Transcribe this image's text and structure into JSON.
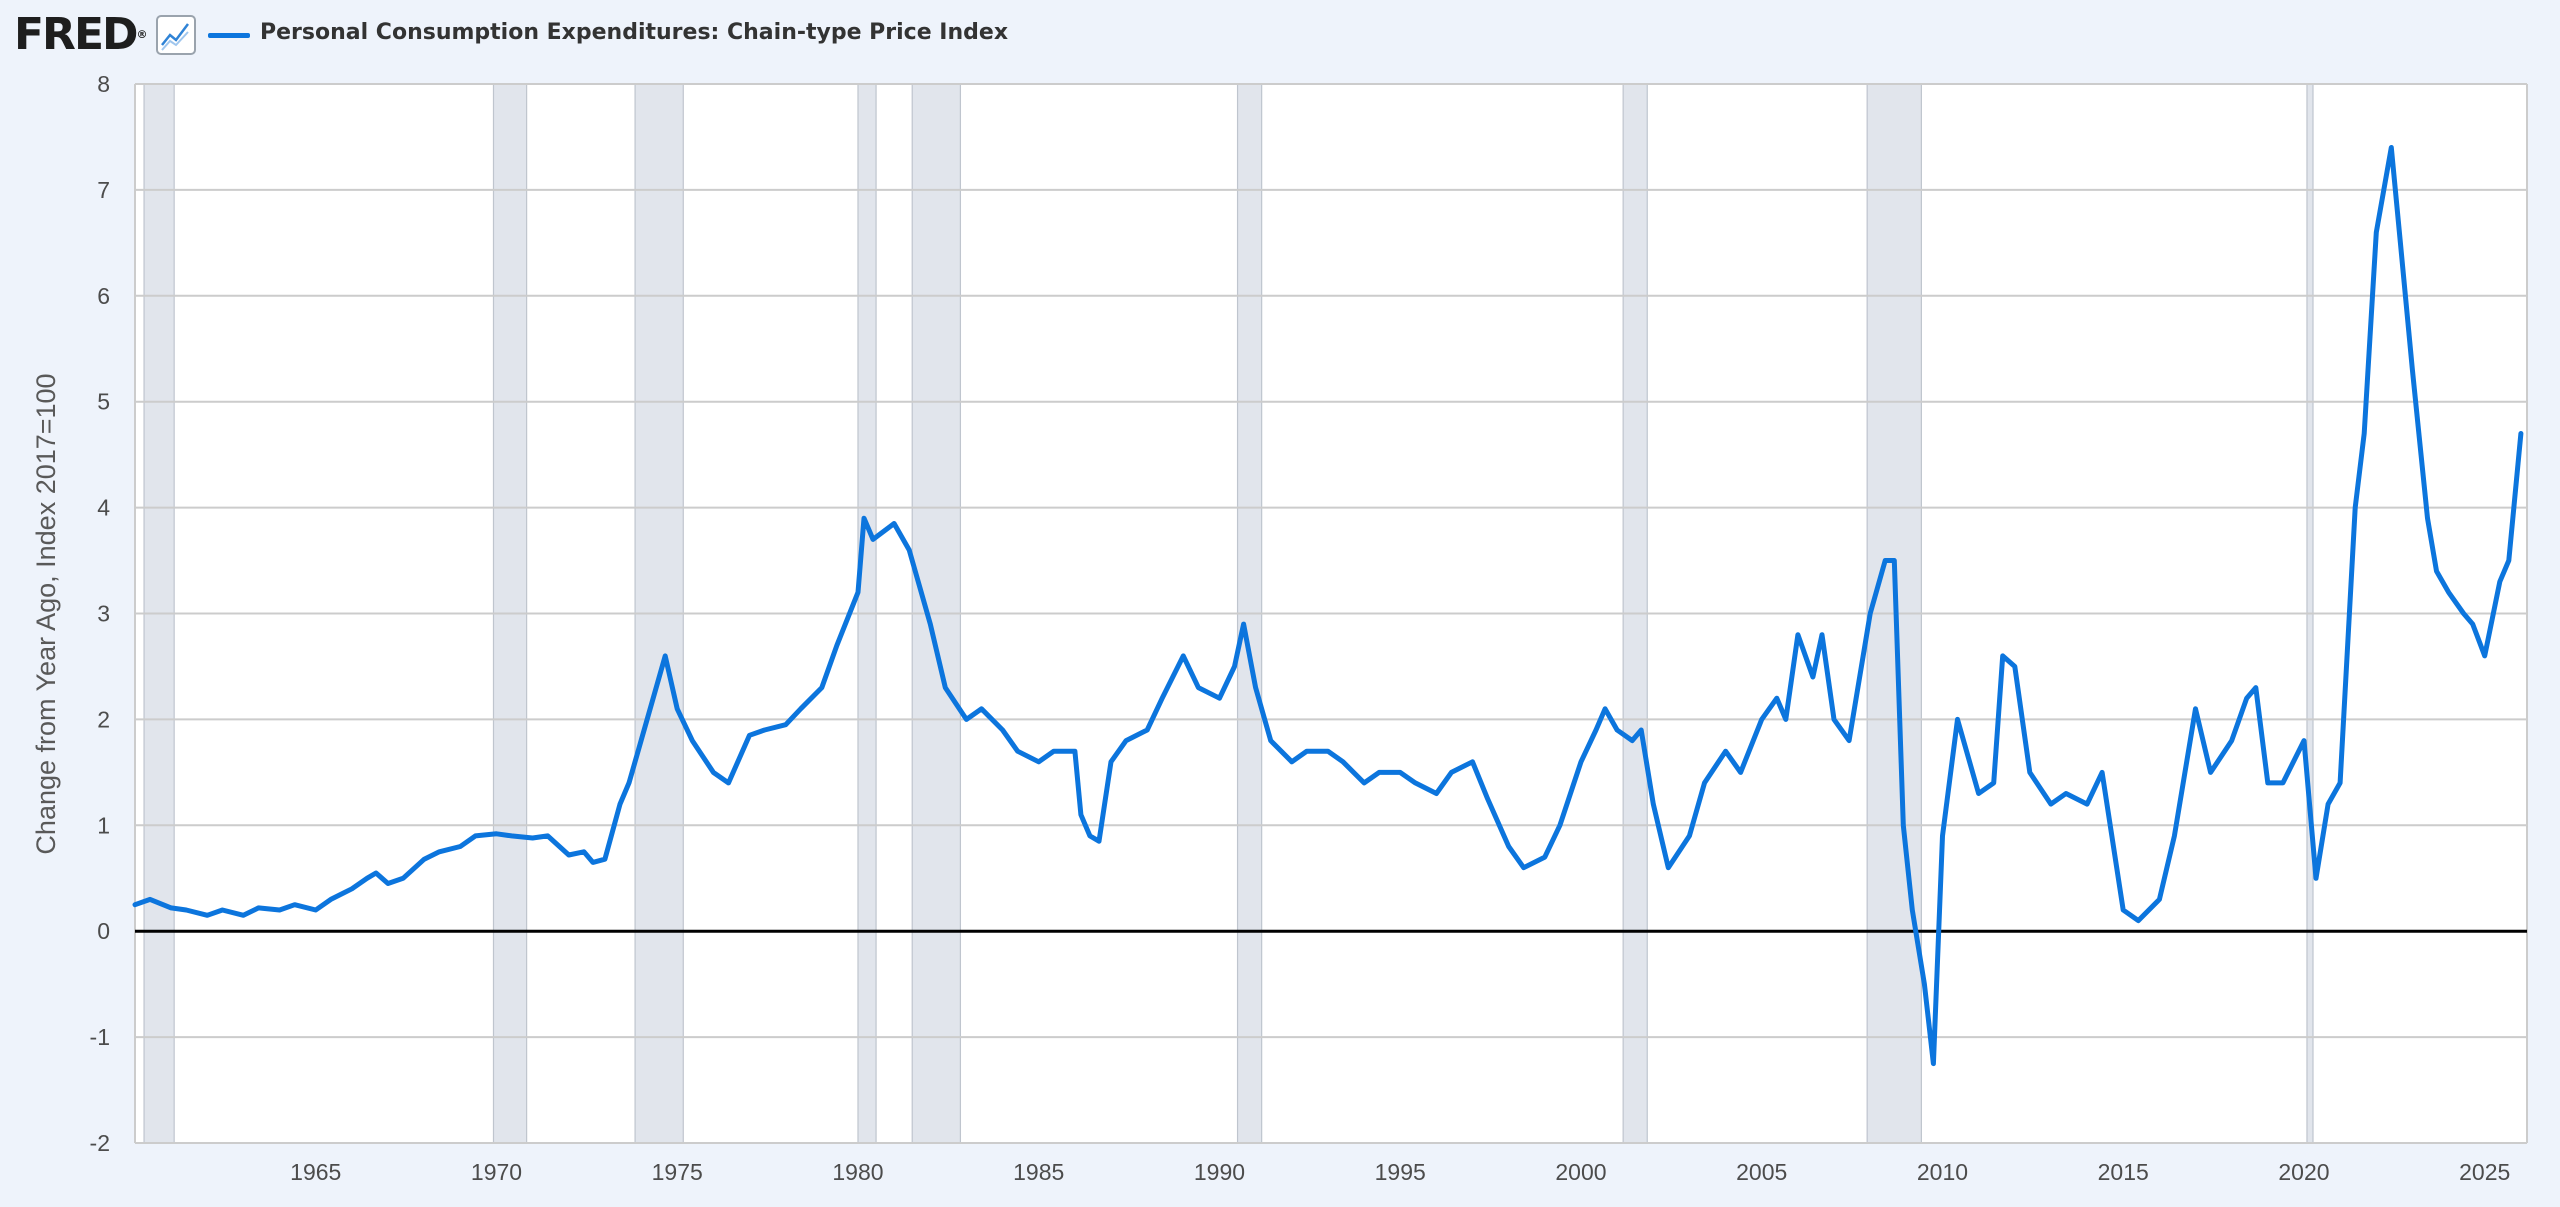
{
  "header": {
    "logo_text": "FRED",
    "logo_mark": "®",
    "chart_icon": "line-chart-icon",
    "series_title": "Personal Consumption Expenditures: Chain-type Price Index"
  },
  "colors": {
    "series": "#0c75dd",
    "recession": "#e1e5ec",
    "background": "#eef3fb",
    "plot": "#ffffff",
    "grid": "#cccccc",
    "zero_line": "#000000"
  },
  "chart_data": {
    "type": "line",
    "title": "",
    "xlabel": "",
    "ylabel": "Change from Year Ago, Index 2017=100",
    "ylim": [
      -2,
      8
    ],
    "xlim": [
      1960.0,
      2026.17
    ],
    "y_ticks": [
      "8",
      "7",
      "6",
      "5",
      "4",
      "3",
      "2",
      "1",
      "0",
      "-1",
      "-2"
    ],
    "x_ticks": [
      "1965",
      "1970",
      "1975",
      "1980",
      "1985",
      "1990",
      "1995",
      "2000",
      "2005",
      "2010",
      "2015",
      "2020",
      "2025"
    ],
    "grid": true,
    "legend": "top-left",
    "recessions": [
      [
        "1960-04",
        "1961-02"
      ],
      [
        "1969-12",
        "1970-11"
      ],
      [
        "1973-11",
        "1975-03"
      ],
      [
        "1980-01",
        "1980-07"
      ],
      [
        "1981-07",
        "1982-11"
      ],
      [
        "1990-07",
        "1991-03"
      ],
      [
        "2001-03",
        "2001-11"
      ],
      [
        "2007-12",
        "2009-06"
      ],
      [
        "2020-02",
        "2020-04"
      ]
    ],
    "series": [
      {
        "name": "Personal Consumption Expenditures: Chain-type Price Index",
        "x": [
          "1960-01",
          "1960-06",
          "1961-01",
          "1961-06",
          "1962-01",
          "1962-06",
          "1963-01",
          "1963-06",
          "1964-01",
          "1964-06",
          "1965-01",
          "1965-06",
          "1966-01",
          "1966-06",
          "1966-09",
          "1967-01",
          "1967-06",
          "1968-01",
          "1968-06",
          "1969-01",
          "1969-06",
          "1970-01",
          "1970-06",
          "1971-01",
          "1971-06",
          "1972-01",
          "1972-06",
          "1972-09",
          "1973-01",
          "1973-06",
          "1973-09",
          "1974-01",
          "1974-06",
          "1974-09",
          "1975-01",
          "1975-06",
          "1976-01",
          "1976-06",
          "1977-01",
          "1977-06",
          "1978-01",
          "1978-06",
          "1979-01",
          "1979-06",
          "1980-01",
          "1980-03",
          "1980-06",
          "1981-01",
          "1981-06",
          "1982-01",
          "1982-06",
          "1983-01",
          "1983-06",
          "1984-01",
          "1984-06",
          "1985-01",
          "1985-06",
          "1986-01",
          "1986-03",
          "1986-06",
          "1986-09",
          "1987-01",
          "1987-06",
          "1988-01",
          "1988-06",
          "1989-01",
          "1989-06",
          "1990-01",
          "1990-06",
          "1990-09",
          "1991-01",
          "1991-06",
          "1992-01",
          "1992-06",
          "1993-01",
          "1993-06",
          "1994-01",
          "1994-06",
          "1995-01",
          "1995-06",
          "1996-01",
          "1996-06",
          "1997-01",
          "1997-06",
          "1998-01",
          "1998-06",
          "1999-01",
          "1999-06",
          "2000-01",
          "2000-06",
          "2000-09",
          "2001-01",
          "2001-06",
          "2001-09",
          "2002-01",
          "2002-06",
          "2003-01",
          "2003-06",
          "2004-01",
          "2004-06",
          "2005-01",
          "2005-06",
          "2005-09",
          "2006-01",
          "2006-06",
          "2006-09",
          "2007-01",
          "2007-06",
          "2008-01",
          "2008-06",
          "2008-09",
          "2008-12",
          "2009-03",
          "2009-07",
          "2009-10",
          "2010-01",
          "2010-06",
          "2011-01",
          "2011-06",
          "2011-09",
          "2012-01",
          "2012-06",
          "2013-01",
          "2013-06",
          "2014-01",
          "2014-06",
          "2015-01",
          "2015-06",
          "2016-01",
          "2016-06",
          "2017-01",
          "2017-06",
          "2018-01",
          "2018-06",
          "2018-09",
          "2019-01",
          "2019-06",
          "2020-01",
          "2020-05",
          "2020-09",
          "2021-01",
          "2021-06",
          "2021-09",
          "2022-01",
          "2022-06",
          "2022-09",
          "2023-01",
          "2023-06",
          "2023-09",
          "2024-01",
          "2024-06",
          "2024-09",
          "2025-01",
          "2025-06",
          "2025-09",
          "2026-01"
        ],
        "values": [
          0.25,
          0.3,
          0.22,
          0.2,
          0.15,
          0.2,
          0.15,
          0.22,
          0.2,
          0.25,
          0.2,
          0.3,
          0.4,
          0.5,
          0.55,
          0.45,
          0.5,
          0.68,
          0.75,
          0.8,
          0.9,
          0.92,
          0.9,
          0.88,
          0.9,
          0.72,
          0.75,
          0.65,
          0.68,
          1.2,
          1.4,
          1.8,
          2.3,
          2.6,
          2.1,
          1.8,
          1.5,
          1.4,
          1.85,
          1.9,
          1.95,
          2.1,
          2.3,
          2.7,
          3.2,
          3.9,
          3.7,
          3.85,
          3.6,
          2.9,
          2.3,
          2.0,
          2.1,
          1.9,
          1.7,
          1.6,
          1.7,
          1.7,
          1.1,
          0.9,
          0.85,
          1.6,
          1.8,
          1.9,
          2.2,
          2.6,
          2.3,
          2.2,
          2.5,
          2.9,
          2.3,
          1.8,
          1.6,
          1.7,
          1.7,
          1.6,
          1.4,
          1.5,
          1.5,
          1.4,
          1.3,
          1.5,
          1.6,
          1.25,
          0.8,
          0.6,
          0.7,
          1.0,
          1.6,
          1.9,
          2.1,
          1.9,
          1.8,
          1.9,
          1.2,
          0.6,
          0.9,
          1.4,
          1.7,
          1.5,
          2.0,
          2.2,
          2.0,
          2.8,
          2.4,
          2.8,
          2.0,
          1.8,
          3.0,
          3.5,
          3.5,
          1.0,
          0.2,
          -0.5,
          -1.25,
          0.9,
          2.0,
          1.3,
          1.4,
          2.6,
          2.5,
          1.5,
          1.2,
          1.3,
          1.2,
          1.5,
          0.2,
          0.1,
          0.3,
          0.9,
          2.1,
          1.5,
          1.8,
          2.2,
          2.3,
          1.4,
          1.4,
          1.8,
          0.5,
          1.2,
          1.4,
          4.0,
          4.7,
          6.6,
          7.4,
          6.5,
          5.3,
          3.9,
          3.4,
          3.2,
          3.0,
          2.9,
          2.6,
          3.3,
          3.5,
          4.7
        ]
      }
    ]
  }
}
